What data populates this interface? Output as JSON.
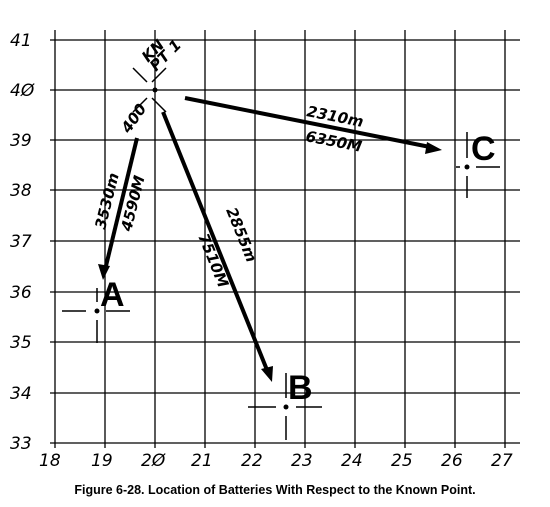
{
  "caption": "Figure 6-28. Location of Batteries With Respect to the Known Point.",
  "grid": {
    "y_ticks": [
      "41",
      "4Ø",
      "39",
      "38",
      "37",
      "36",
      "35",
      "34",
      "33"
    ],
    "x_ticks": [
      "18",
      "19",
      "2Ø",
      "21",
      "22",
      "23",
      "24",
      "25",
      "26",
      "27"
    ]
  },
  "known_point": {
    "label_line1": "KN",
    "label_line2": "PT 1",
    "altitude": "400"
  },
  "batteries": [
    {
      "name": "A",
      "distance": "3530m",
      "azimuth": "4590M"
    },
    {
      "name": "B",
      "distance": "2855m",
      "azimuth": "7510M"
    },
    {
      "name": "C",
      "distance": "2310m",
      "azimuth": "6350M"
    }
  ],
  "colors": {
    "ink": "#000000",
    "paper": "#ffffff"
  }
}
